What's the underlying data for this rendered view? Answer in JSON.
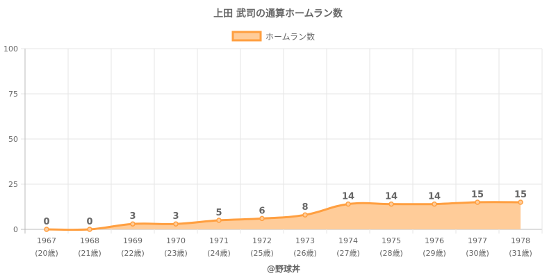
{
  "chart_data": {
    "type": "line",
    "title": "上田 武司の通算ホームラン数",
    "legend": [
      "ホームラン数"
    ],
    "legend_position": "top",
    "categories": [
      "1967",
      "1968",
      "1969",
      "1970",
      "1971",
      "1972",
      "1973",
      "1974",
      "1975",
      "1976",
      "1977",
      "1978"
    ],
    "sub_labels": [
      "(20歳)",
      "(21歳)",
      "(22歳)",
      "(23歳)",
      "(24歳)",
      "(25歳)",
      "(26歳)",
      "(27歳)",
      "(28歳)",
      "(29歳)",
      "(30歳)",
      "(31歳)"
    ],
    "series": [
      {
        "name": "ホームラン数",
        "values": [
          0,
          0,
          3,
          3,
          5,
          6,
          8,
          14,
          14,
          14,
          15,
          15
        ]
      }
    ],
    "ylim": [
      0,
      100
    ],
    "yticks": [
      0,
      25,
      50,
      75,
      100
    ],
    "grid": true,
    "footer": "@野球丼",
    "colors": {
      "line": "#ff9f40",
      "fill": "#ffcc99",
      "grid": "#e6e6e6",
      "text": "#666666"
    }
  }
}
